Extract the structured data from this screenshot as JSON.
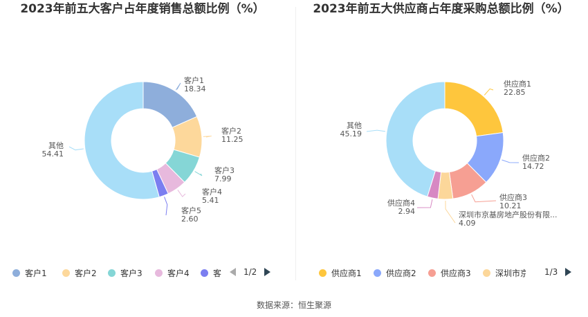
{
  "footer": "数据来源：恒生聚源",
  "charts": [
    {
      "title": "2023年前五大客户占年度销售总额比例（%）",
      "pager": "1/2",
      "legend_visible": [
        "客户1",
        "客户2",
        "客户3",
        "客户4",
        "客"
      ]
    },
    {
      "title": "2023年前五大供应商占年度采购总额比例（%）",
      "pager": "1/3",
      "legend_visible": [
        "供应商1",
        "供应商2",
        "供应商3",
        "深圳市京"
      ]
    }
  ],
  "chart_data": [
    {
      "type": "pie",
      "title": "2023年前五大客户占年度销售总额比例（%）",
      "donut": true,
      "labels": [
        "客户1",
        "客户2",
        "客户3",
        "客户4",
        "客户5",
        "其他"
      ],
      "value_labels": [
        "18.34",
        "11.25",
        "7.99",
        "5.41",
        "2.60",
        "54.41"
      ],
      "values": [
        18.34,
        11.25,
        7.99,
        5.41,
        2.6,
        54.41
      ],
      "colors": [
        "#8eaedb",
        "#fdd89b",
        "#85d6d6",
        "#e7b9dd",
        "#7b7ef0",
        "#a8def8"
      ]
    },
    {
      "type": "pie",
      "title": "2023年前五大供应商占年度采购总额比例（%）",
      "donut": true,
      "labels": [
        "供应商1",
        "供应商2",
        "供应商3",
        "深圳市京基房地产股份有限...",
        "供应商4",
        "其他"
      ],
      "value_labels": [
        "22.85",
        "14.72",
        "10.21",
        "4.09",
        "2.94",
        "45.19"
      ],
      "values": [
        22.85,
        14.72,
        10.21,
        4.09,
        2.94,
        45.19
      ],
      "colors": [
        "#fec63d",
        "#8aa8fb",
        "#f69f93",
        "#fcd79a",
        "#d788c3",
        "#a8def8"
      ]
    }
  ]
}
